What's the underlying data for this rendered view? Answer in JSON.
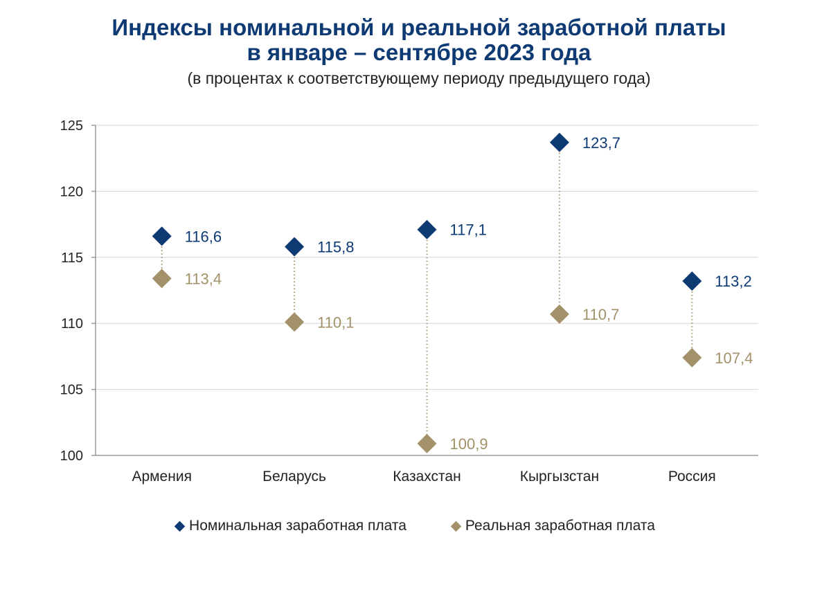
{
  "title_line1": "Индексы номинальной и реальной заработной платы",
  "title_line2": "в январе – сентябре 2023 года",
  "subtitle": "(в процентах к соответствующему периоду предыдущего года)",
  "colors": {
    "nominal": "#0e3a73",
    "real": "#a39269",
    "axis": "#9a9a9a",
    "grid": "#d4d4d4"
  },
  "chart_data": {
    "type": "scatter",
    "categories": [
      "Армения",
      "Беларусь",
      "Казахстан",
      "Кыргызстан",
      "Россия"
    ],
    "series": [
      {
        "name": "Номинальная заработная плата",
        "values": [
          116.6,
          115.8,
          117.1,
          123.7,
          113.2
        ],
        "labels": [
          "116,6",
          "115,8",
          "117,1",
          "123,7",
          "113,2"
        ]
      },
      {
        "name": "Реальная заработная плата",
        "values": [
          113.4,
          110.1,
          100.9,
          110.7,
          107.4
        ],
        "labels": [
          "113,4",
          "110,1",
          "100,9",
          "110,7",
          "107,4"
        ]
      }
    ],
    "ylim": [
      100,
      125
    ],
    "yticks": [
      100,
      105,
      110,
      115,
      120,
      125
    ],
    "grid": true,
    "legend": "bottom-center"
  }
}
